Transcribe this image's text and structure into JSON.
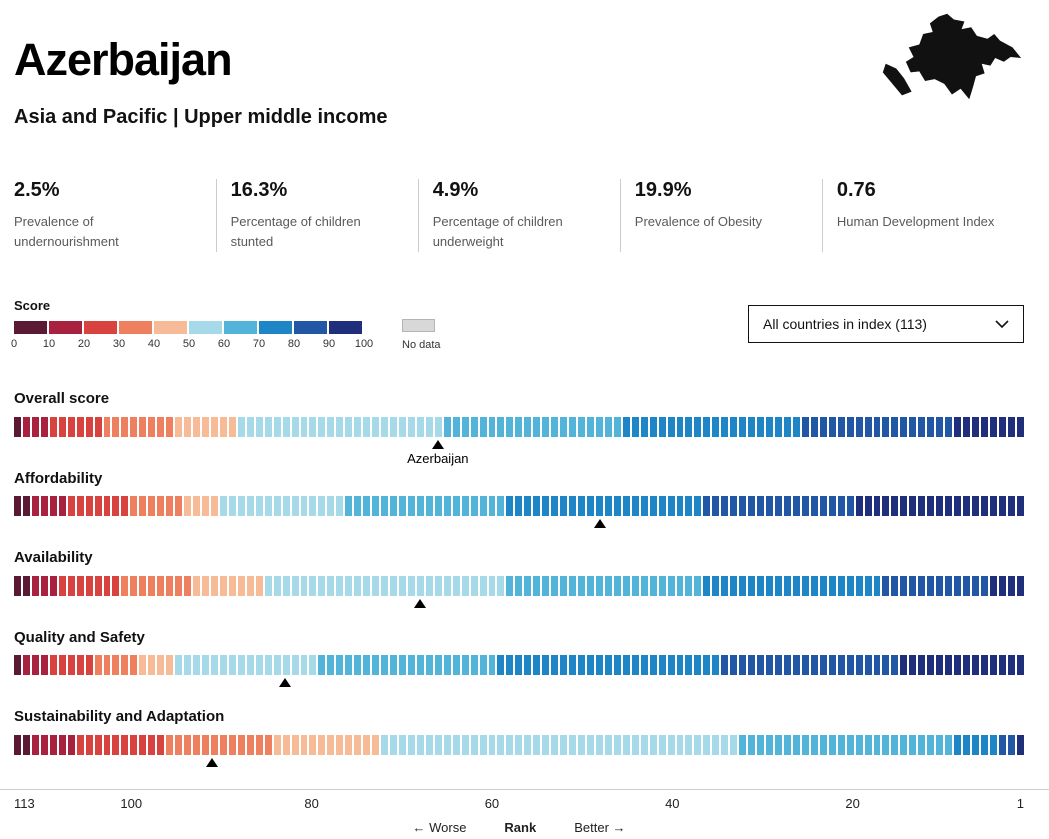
{
  "header": {
    "title": "Azerbaijan",
    "subtitle": "Asia and Pacific | Upper middle income"
  },
  "stats": [
    {
      "value": "2.5%",
      "label": "Prevalence of undernourishment"
    },
    {
      "value": "16.3%",
      "label": "Percentage of children stunted"
    },
    {
      "value": "4.9%",
      "label": "Percentage of children underweight"
    },
    {
      "value": "19.9%",
      "label": "Prevalence of Obesity"
    },
    {
      "value": "0.76",
      "label": "Human Development Index"
    }
  ],
  "legend": {
    "title": "Score",
    "ticks": [
      "0",
      "10",
      "20",
      "30",
      "40",
      "50",
      "60",
      "70",
      "80",
      "90",
      "100"
    ],
    "colors": [
      "#5a1a33",
      "#a82240",
      "#d8433f",
      "#ee7f5f",
      "#f8bb98",
      "#a6dae8",
      "#53b4da",
      "#1e86c7",
      "#2257a5",
      "#1f2f7c"
    ],
    "no_data_label": "No data",
    "no_data_color": "#d8d8d8"
  },
  "filter": {
    "selected": "All countries in index (113)"
  },
  "chart_data": {
    "type": "bar",
    "total_countries": 113,
    "marker_label": "Azerbaijan",
    "segment_format": "[bar_count, legend_color_index]; bars ordered worst (left, rank 113) to best (right, rank 1)",
    "rows": [
      {
        "label": "Overall score",
        "rank": 66,
        "show_marker_label": true,
        "segments": [
          [
            1,
            0
          ],
          [
            3,
            1
          ],
          [
            6,
            2
          ],
          [
            8,
            3
          ],
          [
            7,
            4
          ],
          [
            23,
            5
          ],
          [
            20,
            6
          ],
          [
            20,
            7
          ],
          [
            17,
            8
          ],
          [
            8,
            9
          ]
        ]
      },
      {
        "label": "Affordability",
        "rank": 48,
        "show_marker_label": false,
        "segments": [
          [
            2,
            0
          ],
          [
            4,
            1
          ],
          [
            7,
            2
          ],
          [
            6,
            3
          ],
          [
            4,
            4
          ],
          [
            14,
            5
          ],
          [
            18,
            6
          ],
          [
            22,
            7
          ],
          [
            17,
            8
          ],
          [
            19,
            9
          ]
        ]
      },
      {
        "label": "Availability",
        "rank": 68,
        "show_marker_label": false,
        "segments": [
          [
            2,
            0
          ],
          [
            3,
            1
          ],
          [
            7,
            2
          ],
          [
            8,
            3
          ],
          [
            8,
            4
          ],
          [
            27,
            5
          ],
          [
            22,
            6
          ],
          [
            20,
            7
          ],
          [
            12,
            8
          ],
          [
            4,
            9
          ]
        ]
      },
      {
        "label": "Quality and Safety",
        "rank": 83,
        "show_marker_label": false,
        "segments": [
          [
            1,
            0
          ],
          [
            3,
            1
          ],
          [
            5,
            2
          ],
          [
            5,
            3
          ],
          [
            4,
            4
          ],
          [
            16,
            5
          ],
          [
            20,
            6
          ],
          [
            25,
            7
          ],
          [
            20,
            8
          ],
          [
            14,
            9
          ]
        ]
      },
      {
        "label": "Sustainability and Adaptation",
        "rank": 91,
        "show_marker_label": false,
        "segments": [
          [
            2,
            0
          ],
          [
            5,
            1
          ],
          [
            10,
            2
          ],
          [
            12,
            3
          ],
          [
            12,
            4
          ],
          [
            40,
            5
          ],
          [
            24,
            6
          ],
          [
            5,
            7
          ],
          [
            2,
            8
          ],
          [
            1,
            9
          ]
        ]
      }
    ],
    "axis": {
      "ticks": [
        113,
        100,
        80,
        60,
        40,
        20,
        1
      ],
      "worse_label": "Worse",
      "rank_label": "Rank",
      "better_label": "Better"
    }
  }
}
